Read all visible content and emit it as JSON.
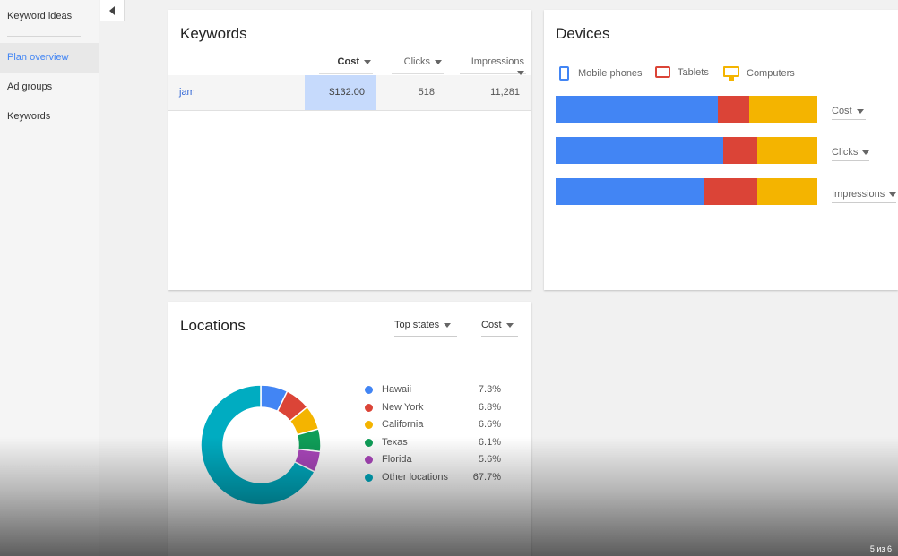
{
  "sidebar": {
    "items": [
      {
        "label": "Keyword ideas"
      },
      {
        "label": "Plan overview",
        "active": true
      },
      {
        "label": "Ad groups"
      },
      {
        "label": "Keywords"
      }
    ]
  },
  "keywords": {
    "title": "Keywords",
    "columns": [
      "Cost",
      "Clicks",
      "Impressions"
    ],
    "rows": [
      {
        "keyword": "jam",
        "cost": "$132.00",
        "clicks": "518",
        "impressions": "11,281"
      }
    ]
  },
  "devices": {
    "title": "Devices",
    "legend": [
      {
        "name": "Mobile phones",
        "icon": "mobile-phone-icon",
        "color": "#4285f4"
      },
      {
        "name": "Tablets",
        "icon": "tablet-icon",
        "color": "#db4437"
      },
      {
        "name": "Computers",
        "icon": "computer-icon",
        "color": "#f4b400"
      }
    ],
    "metrics": [
      "Cost",
      "Clicks",
      "Impressions"
    ]
  },
  "locations": {
    "title": "Locations",
    "dropdown_scope": "Top states",
    "dropdown_metric": "Cost",
    "legend": [
      {
        "name": "Hawaii",
        "pct": "7.3%"
      },
      {
        "name": "New York",
        "pct": "6.8%"
      },
      {
        "name": "California",
        "pct": "6.6%"
      },
      {
        "name": "Texas",
        "pct": "6.1%"
      },
      {
        "name": "Florida",
        "pct": "5.6%"
      },
      {
        "name": "Other locations",
        "pct": "67.7%"
      }
    ]
  },
  "page_indicator": "5 из 6",
  "chart_data": [
    {
      "type": "bar",
      "stacked": true,
      "orientation": "horizontal",
      "categories": [
        "Cost",
        "Clicks",
        "Impressions"
      ],
      "series": [
        {
          "name": "Mobile phones",
          "values": [
            62,
            64,
            57
          ],
          "color": "#4285f4"
        },
        {
          "name": "Tablets",
          "values": [
            12,
            13,
            20
          ],
          "color": "#db4437"
        },
        {
          "name": "Computers",
          "values": [
            26,
            23,
            23
          ],
          "color": "#f4b400"
        }
      ],
      "unit": "percent"
    },
    {
      "type": "pie",
      "donut": true,
      "categories": [
        "Hawaii",
        "New York",
        "California",
        "Texas",
        "Florida",
        "Other locations"
      ],
      "values": [
        7.3,
        6.8,
        6.6,
        6.1,
        5.6,
        67.7
      ],
      "colors": [
        "#4285f4",
        "#db4437",
        "#f4b400",
        "#0f9d58",
        "#ab47bc",
        "#00acc1"
      ]
    }
  ]
}
